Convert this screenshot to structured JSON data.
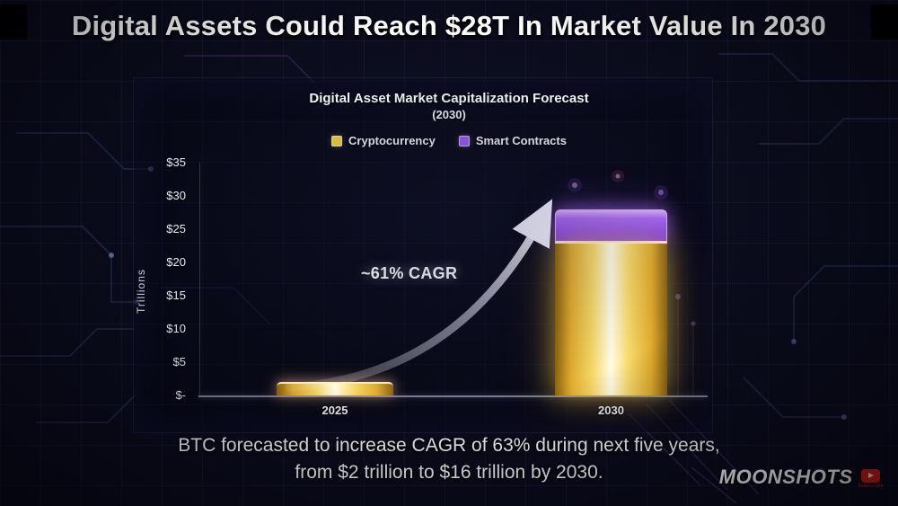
{
  "headline": "Digital Assets Could Reach $28T In Market Value In 2030",
  "chart_data": {
    "type": "bar",
    "stacked": true,
    "title": "Digital Asset Market Capitalization Forecast",
    "subtitle": "(2030)",
    "categories": [
      "2025",
      "2030"
    ],
    "series": [
      {
        "name": "Cryptocurrency",
        "color": "#f2cf3f",
        "values": [
          2,
          23
        ]
      },
      {
        "name": "Smart Contracts",
        "color": "#9b5cf6",
        "values": [
          0,
          5
        ]
      }
    ],
    "xlabel": "",
    "ylabel": "Trillions",
    "ylim": [
      0,
      35
    ],
    "y_ticks": [
      "$35",
      "$30",
      "$25",
      "$20",
      "$15",
      "$10",
      "$5",
      "$-"
    ],
    "annotation": "~61% CAGR",
    "legend_position": "top",
    "grid": true
  },
  "caption": {
    "lines": [
      "BTC forecasted to increase CAGR of 63% during next five years,",
      "from $2 trillion to $16 trillion by 2030."
    ]
  },
  "branding": {
    "channel": "MOONSHOTS",
    "subscribe_label": "Subscribe"
  }
}
